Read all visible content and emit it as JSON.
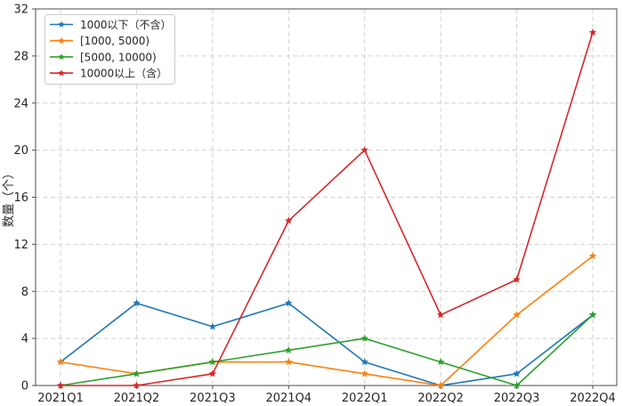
{
  "chart_data": {
    "type": "line",
    "title": "",
    "xlabel": "",
    "ylabel": "数量（个）",
    "x_categories": [
      "2021Q1",
      "2021Q2",
      "2021Q3",
      "2021Q4",
      "2022Q1",
      "2022Q2",
      "2022Q3",
      "2022Q4"
    ],
    "yticks": [
      0,
      4,
      8,
      12,
      16,
      20,
      24,
      28,
      32
    ],
    "ylim": [
      0,
      32
    ],
    "grid": "dashed-both-directions",
    "legend_position": "upper-left",
    "marker_style": "star",
    "series": [
      {
        "name": "1000以下（不含）",
        "color": "#1f77b4",
        "values": [
          2,
          7,
          5,
          7,
          2,
          0,
          1,
          6
        ]
      },
      {
        "name": "[1000, 5000)",
        "color": "#ff7f0e",
        "values": [
          2,
          1,
          2,
          2,
          1,
          0,
          6,
          11
        ]
      },
      {
        "name": "[5000, 10000)",
        "color": "#2ca02c",
        "values": [
          0,
          1,
          2,
          3,
          4,
          2,
          0,
          6
        ]
      },
      {
        "name": "10000以上（含）",
        "color": "#d62728",
        "values": [
          0,
          0,
          1,
          14,
          20,
          6,
          9,
          30
        ]
      }
    ],
    "colors": {
      "axis": "#4d4d4d",
      "grid": "#cfcfcf",
      "text": "#262626",
      "legend_border": "#cccccc",
      "background": "#ffffff"
    }
  }
}
